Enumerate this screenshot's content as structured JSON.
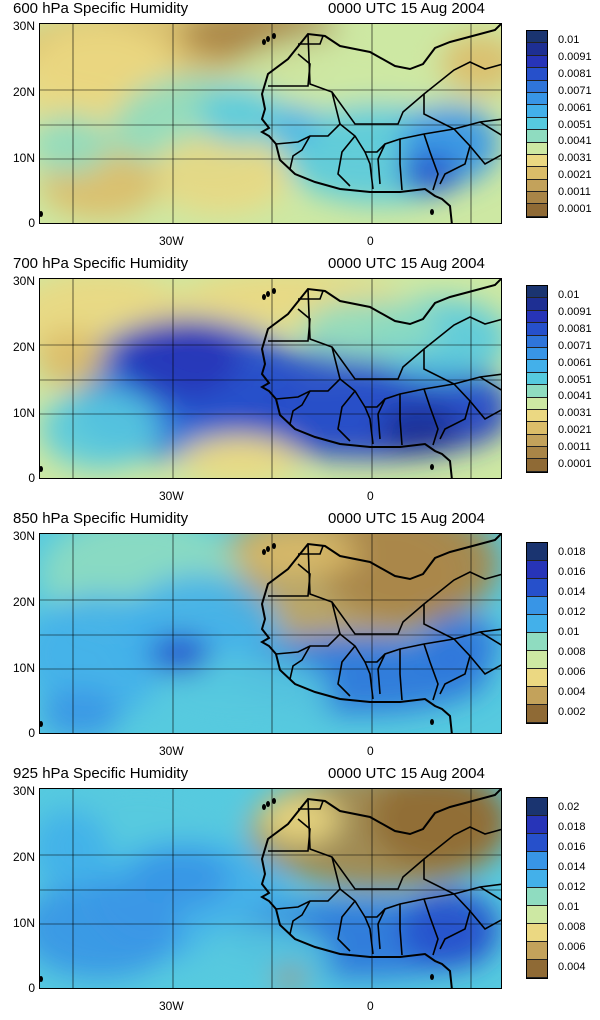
{
  "time_label": "0000 UTC 15 Aug 2004",
  "y_ticks": [
    "30N",
    "20N",
    "10N",
    "0"
  ],
  "x_ticks": [
    "30W",
    "0"
  ],
  "palette": [
    "#8f6a35",
    "#a98547",
    "#c3a25b",
    "#dbbd69",
    "#ebd882",
    "#cde8a3",
    "#8fdcc0",
    "#56cadf",
    "#43b0ea",
    "#3895e6",
    "#2f75da",
    "#2650cb",
    "#2734b8",
    "#1e2f93",
    "#1a3470"
  ],
  "panels": [
    {
      "title": "600 hPa Specific Humidity",
      "colorbar_labels": [
        "0.01",
        "0.0091",
        "0.0081",
        "0.0071",
        "0.0061",
        "0.0051",
        "0.0041",
        "0.0031",
        "0.0021",
        "0.0011",
        "0.0001"
      ]
    },
    {
      "title": "700 hPa Specific Humidity",
      "colorbar_labels": [
        "0.01",
        "0.0091",
        "0.0081",
        "0.0071",
        "0.0061",
        "0.0051",
        "0.0041",
        "0.0031",
        "0.0021",
        "0.0011",
        "0.0001"
      ]
    },
    {
      "title": "850 hPa Specific Humidity",
      "colorbar_labels": [
        "0.018",
        "0.016",
        "0.014",
        "0.012",
        "0.01",
        "0.008",
        "0.006",
        "0.004",
        "0.002"
      ]
    },
    {
      "title": "925 hPa Specific Humidity",
      "colorbar_labels": [
        "0.02",
        "0.018",
        "0.016",
        "0.014",
        "0.012",
        "0.01",
        "0.008",
        "0.006",
        "0.004"
      ]
    }
  ]
}
